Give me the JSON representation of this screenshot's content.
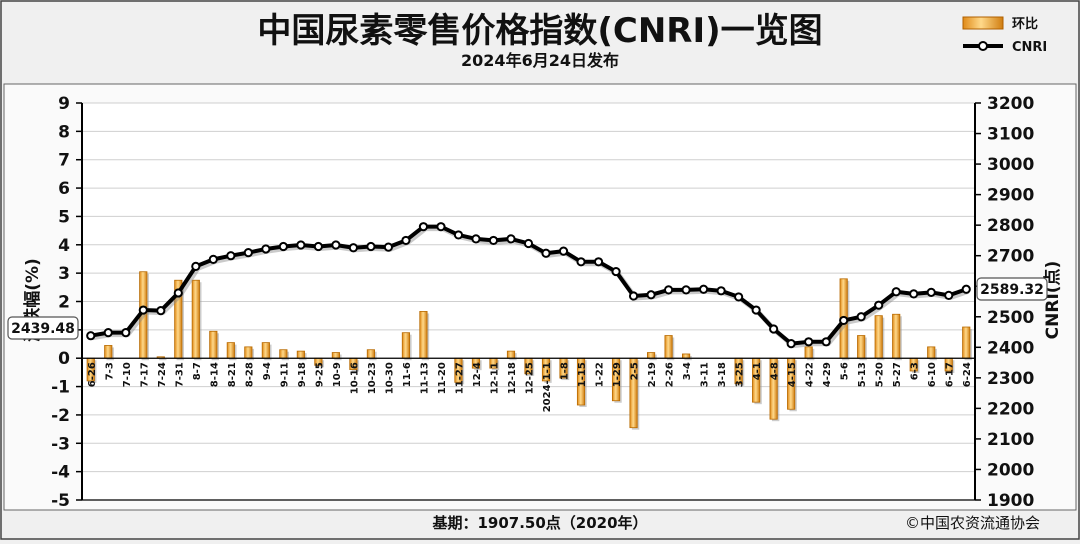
{
  "chart_data": {
    "type": "bar+line",
    "title": "中国尿素零售价格指数(CNRI)一览图",
    "subtitle": "2024年6月24日发布",
    "ylabel_left": "涨跌幅(%)",
    "ylabel_right": "CNRI(点)",
    "ylim_left": [
      -5,
      9
    ],
    "ylim_right": [
      1900,
      3200
    ],
    "left_ticks": [
      "9",
      "8",
      "7",
      "6",
      "5",
      "4",
      "3",
      "2",
      "1",
      "0",
      "-1",
      "-2",
      "-3",
      "-4",
      "-5"
    ],
    "right_ticks": [
      "3200",
      "3100",
      "3000",
      "2900",
      "2800",
      "2700",
      "2600",
      "2500",
      "2400",
      "2300",
      "2200",
      "2100",
      "2000",
      "1900"
    ],
    "grid": true,
    "legend_position": "top-right",
    "categories": [
      "6-26",
      "7-3",
      "7-10",
      "7-17",
      "7-24",
      "7-31",
      "8-7",
      "8-14",
      "8-21",
      "8-28",
      "9-4",
      "9-11",
      "9-18",
      "9-25",
      "10-9",
      "10-16",
      "10-23",
      "10-30",
      "11-6",
      "11-13",
      "11-20",
      "11-27",
      "12-4",
      "12-11",
      "12-18",
      "12-25",
      "2024-1-1",
      "1-8",
      "1-15",
      "1-22",
      "1-29",
      "2-5",
      "2-19",
      "2-26",
      "3-4",
      "3-11",
      "3-18",
      "3-25",
      "4-1",
      "4-8",
      "4-15",
      "4-22",
      "4-29",
      "5-6",
      "5-13",
      "5-20",
      "5-27",
      "6-3",
      "6-10",
      "6-17",
      "6-24"
    ],
    "series": [
      {
        "name": "环比",
        "type": "bar",
        "color": "#f0a030",
        "values": [
          -0.8,
          0.45,
          0.0,
          3.05,
          0.05,
          2.75,
          2.75,
          0.95,
          0.55,
          0.4,
          0.55,
          0.3,
          0.25,
          -0.25,
          0.2,
          -0.4,
          0.3,
          0.0,
          0.9,
          1.65,
          0.0,
          -0.85,
          -0.35,
          -0.35,
          0.25,
          -0.55,
          -0.8,
          -0.7,
          -1.65,
          0.0,
          -1.5,
          -2.45,
          0.2,
          0.8,
          0.15,
          0.0,
          0.0,
          -0.9,
          -1.55,
          -2.15,
          -1.8,
          0.4,
          0.0,
          2.8,
          0.8,
          1.5,
          1.55,
          -0.45,
          0.4,
          -0.45,
          1.1
        ]
      },
      {
        "name": "CNRI",
        "type": "line",
        "color": "#000000",
        "values": [
          2438,
          2448,
          2448,
          2522,
          2520,
          2578,
          2665,
          2688,
          2700,
          2710,
          2722,
          2730,
          2735,
          2730,
          2735,
          2726,
          2730,
          2728,
          2750,
          2795,
          2795,
          2768,
          2755,
          2750,
          2755,
          2740,
          2708,
          2715,
          2680,
          2680,
          2648,
          2568,
          2572,
          2588,
          2588,
          2590,
          2585,
          2565,
          2522,
          2460,
          2412,
          2418,
          2418,
          2488,
          2500,
          2538,
          2582,
          2575,
          2580,
          2570,
          2590
        ]
      }
    ],
    "data_labels": {
      "first_value": "2439.48",
      "last_value": "2589.32"
    },
    "footer_base": "基期：1907.50点（2020年）",
    "copyright": "©中国农资流通协会"
  }
}
